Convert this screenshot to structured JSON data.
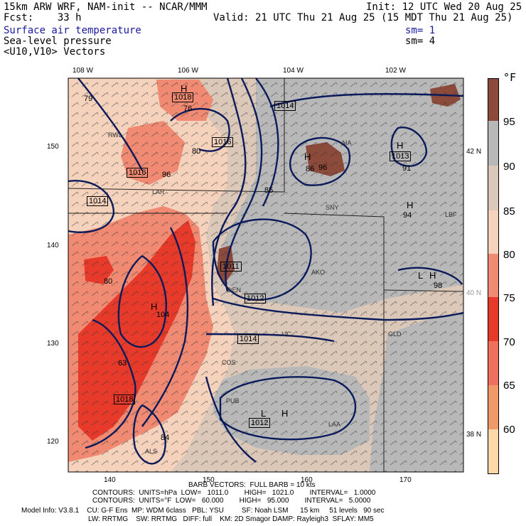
{
  "header": {
    "model_title": "15km ARW WRF, NAM-init -- NCAR/MMM",
    "init": "Init: 12 UTC Wed 20 Aug 25",
    "fcst": "Fcst:    33 h",
    "valid": "Valid: 21 UTC Thu 21 Aug 25 (15 MDT Thu 21 Aug 25)",
    "field1": "Surface air temperature",
    "field1_sm": "sm= 1",
    "field2": "Sea-level pressure",
    "field2_sm": "sm= 4",
    "field3": "<U10,V10> Vectors"
  },
  "map": {
    "lon_labels": [
      "108 W",
      "106 W",
      "104 W",
      "102 W"
    ],
    "lat_labels": [
      "42 N",
      "40 N",
      "38 N"
    ],
    "grid_y_labels": [
      "150",
      "140",
      "130",
      "120"
    ],
    "grid_x_labels": [
      "140",
      "150",
      "160",
      "170"
    ],
    "pressure_labels": [
      "1018",
      "1014",
      "1016",
      "1016",
      "1014",
      "1011",
      "1012",
      "1014",
      "1018",
      "1013",
      "1012"
    ],
    "high_low": [
      "H",
      "H",
      "H",
      "H",
      "H",
      "L",
      "H",
      "L",
      "H"
    ],
    "value_labels": [
      "79",
      "76",
      "80",
      "96",
      "86",
      "91",
      "94",
      "80",
      "104",
      "96",
      "84",
      "85",
      "98",
      "63"
    ],
    "station_labels": [
      "RWL",
      "LAR",
      "SNY",
      "AKO",
      "DEN",
      "LIC",
      "PUB",
      "LAA",
      "GLD",
      "AIA",
      "ALS",
      "COS",
      "LBF"
    ]
  },
  "colorbar": {
    "unit": "°F",
    "labels": [
      "95",
      "90",
      "85",
      "80",
      "75",
      "70",
      "65",
      "60"
    ],
    "colors": [
      "#8c4a3a",
      "#b8b8b8",
      "#dcc8b8",
      "#f5d2bc",
      "#f08a72",
      "#e83a2a",
      "#f09a6a",
      "#fcd7a8"
    ]
  },
  "footer": {
    "barb": "BARB VECTORS:  FULL BARB = 10 kts",
    "contours1": "CONTOURS:  UNITS=hPa  LOW=   1011.0        HIGH=   1021.0        INTERVAL=   1.0000",
    "contours2": "CONTOURS:  UNITS=°F  LOW=   60.000        HIGH=   95.000        INTERVAL=   5.0000",
    "model_info1": "Model Info: V3.8.1    CU: G-F Ens  MP: WDM 6class   PBL: YSU         SF: Noah LSM      15 km     51 levels   90 sec",
    "model_info2": "LW: RRTMG    SW: RRTMG   DIFF: full    KM: 2D Smagor DAMP: Rayleigh3  SFLAY: MM5"
  }
}
